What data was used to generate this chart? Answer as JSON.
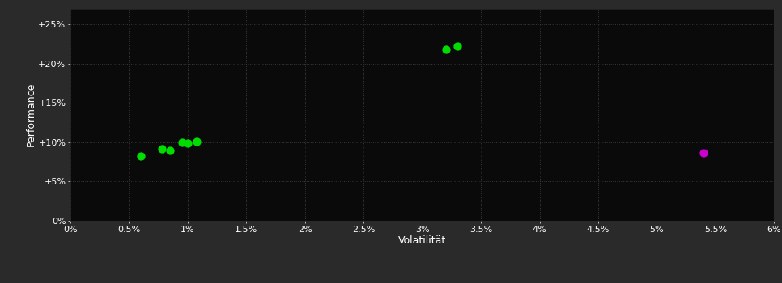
{
  "background_color": "#2a2a2a",
  "plot_bg_color": "#0a0a0a",
  "grid_color": "#3a3a3a",
  "text_color": "#ffffff",
  "xlabel": "Volatilität",
  "ylabel": "Performance",
  "xlim": [
    0.0,
    0.06
  ],
  "ylim": [
    0.0,
    0.27
  ],
  "xticks": [
    0.0,
    0.005,
    0.01,
    0.015,
    0.02,
    0.025,
    0.03,
    0.035,
    0.04,
    0.045,
    0.05,
    0.055,
    0.06
  ],
  "yticks": [
    0.0,
    0.05,
    0.1,
    0.15,
    0.2,
    0.25
  ],
  "xtick_labels": [
    "0%",
    "0.5%",
    "1%",
    "1.5%",
    "2%",
    "2.5%",
    "3%",
    "3.5%",
    "4%",
    "4.5%",
    "5%",
    "5.5%",
    "6%"
  ],
  "ytick_labels": [
    "0%",
    "+5%",
    "+10%",
    "+15%",
    "+20%",
    "+25%"
  ],
  "green_points": [
    [
      0.006,
      0.082
    ],
    [
      0.0078,
      0.092
    ],
    [
      0.0085,
      0.09
    ],
    [
      0.0095,
      0.1
    ],
    [
      0.01,
      0.099
    ],
    [
      0.0108,
      0.101
    ],
    [
      0.032,
      0.218
    ],
    [
      0.033,
      0.222
    ]
  ],
  "magenta_points": [
    [
      0.054,
      0.086
    ]
  ],
  "green_color": "#00dd00",
  "magenta_color": "#cc00cc",
  "marker_size": 55
}
